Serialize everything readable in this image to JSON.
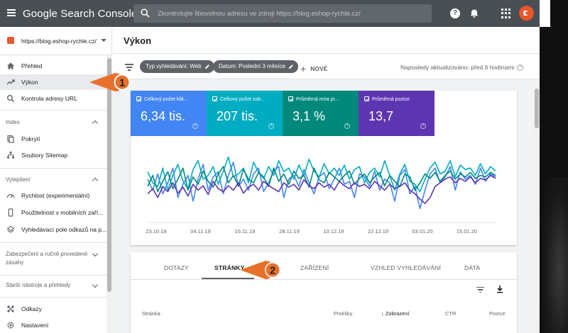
{
  "app": {
    "title": "Google Search Console",
    "search_placeholder": "Zkontrolujte libovolnou adresu ve zdroji https://blog.eshop-rychle.cz/"
  },
  "colors": {
    "topbar": "#4a4f54",
    "clicks": "#4285f4",
    "impressions": "#00acc1",
    "ctr": "#00897b",
    "position": "#5e35b1",
    "callout": "#e8702a"
  },
  "sidebar": {
    "property": "https://blog.eshop-rychle.cz/",
    "items": [
      {
        "label": "Přehled",
        "icon": "home-icon"
      },
      {
        "label": "Výkon",
        "icon": "trending-up-icon"
      },
      {
        "label": "Kontrola adresy URL",
        "icon": "search-icon"
      }
    ],
    "sections": [
      {
        "title": "Index",
        "items": [
          {
            "label": "Pokrytí",
            "icon": "file-copy-icon"
          },
          {
            "label": "Soubory Sitemap",
            "icon": "sitemap-icon"
          }
        ]
      },
      {
        "title": "Vylepšení",
        "items": [
          {
            "label": "Rychlost (experimentální)",
            "icon": "speed-icon"
          },
          {
            "label": "Použitelnost v mobilních zaří...",
            "icon": "phone-icon"
          },
          {
            "label": "Vyhledávací pole odkazů na p...",
            "icon": "layers-icon"
          }
        ]
      },
      {
        "title": "Zabezpečení a ručně provedené zásahy"
      },
      {
        "title": "Starší nástroje a přehledy"
      }
    ],
    "bottom_items": [
      {
        "label": "Odkazy",
        "icon": "links-icon"
      },
      {
        "label": "Nastavení",
        "icon": "settings-icon"
      }
    ]
  },
  "main": {
    "title": "Výkon",
    "filters": [
      {
        "label": "Typ vyhledávání: Web"
      },
      {
        "label": "Datum: Poslední 3 měsíce"
      }
    ],
    "new_label": "NOVÉ",
    "updated": "Naposledy aktualizováno: před 6 hodinami"
  },
  "metrics": [
    {
      "label": "Celkový počet klik...",
      "value": "6,34 tis."
    },
    {
      "label": "Celkový počet zob...",
      "value": "207 tis."
    },
    {
      "label": "Průměrná míra pr...",
      "value": "3,1 %"
    },
    {
      "label": "Průměrná pozice",
      "value": "13,7"
    }
  ],
  "chart_data": {
    "type": "line",
    "x_tick_labels": [
      "23.10.19",
      "04.11.19",
      "16.11.19",
      "28.11.19",
      "10.12.19",
      "22.12.19",
      "03.01.20",
      "15.01.20"
    ],
    "series": [
      {
        "name": "Celkový počet kliknutí",
        "color": "#4285f4",
        "values": [
          0.55,
          0.4,
          0.62,
          0.35,
          0.5,
          0.7,
          0.3,
          0.48,
          0.6,
          0.25,
          0.55,
          0.75,
          0.4,
          0.58,
          0.65,
          0.35,
          0.6,
          0.78,
          0.45,
          0.55,
          0.4,
          0.62,
          0.7,
          0.38,
          0.5,
          0.66,
          0.72,
          0.3,
          0.55,
          0.6,
          0.45,
          0.68,
          0.5,
          0.35,
          0.58,
          0.64,
          0.42,
          0.55,
          0.7,
          0.48,
          0.52,
          0.3,
          0.62,
          0.58,
          0.45,
          0.66,
          0.4,
          0.55,
          0.5,
          0.25,
          0.6,
          0.68,
          0.35,
          0.45,
          0.15,
          0.4,
          0.62,
          0.7,
          0.5,
          0.58,
          0.72,
          0.4,
          0.65,
          0.55,
          0.6,
          0.48,
          0.7,
          0.52,
          0.62,
          0.58
        ]
      },
      {
        "name": "Celkový počet zobrazení",
        "color": "#00acc1",
        "values": [
          0.65,
          0.5,
          0.45,
          0.7,
          0.4,
          0.6,
          0.75,
          0.52,
          0.42,
          0.68,
          0.8,
          0.55,
          0.6,
          0.72,
          0.48,
          0.66,
          0.85,
          0.58,
          0.62,
          0.7,
          0.5,
          0.78,
          0.64,
          0.56,
          0.72,
          0.6,
          0.8,
          0.65,
          0.7,
          0.55,
          0.74,
          0.6,
          0.82,
          0.66,
          0.58,
          0.76,
          0.62,
          0.7,
          0.6,
          0.74,
          0.55,
          0.68,
          0.72,
          0.5,
          0.64,
          0.7,
          0.58,
          0.8,
          0.6,
          0.4,
          0.62,
          0.75,
          0.52,
          0.48,
          0.38,
          0.55,
          0.7,
          0.78,
          0.62,
          0.66,
          0.8,
          0.58,
          0.74,
          0.68,
          0.7,
          0.6,
          0.76,
          0.62,
          0.72,
          0.66
        ]
      },
      {
        "name": "Průměrná míra prokliku",
        "color": "#00897b",
        "values": [
          0.45,
          0.6,
          0.38,
          0.52,
          0.65,
          0.42,
          0.55,
          0.7,
          0.4,
          0.58,
          0.48,
          0.66,
          0.52,
          0.44,
          0.62,
          0.72,
          0.5,
          0.6,
          0.46,
          0.68,
          0.55,
          0.5,
          0.64,
          0.58,
          0.45,
          0.7,
          0.52,
          0.62,
          0.48,
          0.66,
          0.56,
          0.6,
          0.44,
          0.7,
          0.54,
          0.5,
          0.64,
          0.58,
          0.52,
          0.6,
          0.66,
          0.48,
          0.56,
          0.62,
          0.5,
          0.58,
          0.64,
          0.46,
          0.6,
          0.52,
          0.45,
          0.62,
          0.58,
          0.4,
          0.5,
          0.62,
          0.56,
          0.64,
          0.52,
          0.6,
          0.66,
          0.55,
          0.62,
          0.58,
          0.64,
          0.56,
          0.6,
          0.58,
          0.64,
          0.6
        ]
      },
      {
        "name": "Průměrná pozice",
        "color": "#5e35b1",
        "values": [
          0.35,
          0.42,
          0.3,
          0.45,
          0.38,
          0.5,
          0.36,
          0.44,
          0.32,
          0.48,
          0.4,
          0.46,
          0.34,
          0.52,
          0.42,
          0.38,
          0.46,
          0.4,
          0.5,
          0.36,
          0.44,
          0.48,
          0.4,
          0.52,
          0.46,
          0.42,
          0.38,
          0.5,
          0.44,
          0.48,
          0.4,
          0.54,
          0.46,
          0.42,
          0.5,
          0.44,
          0.48,
          0.4,
          0.52,
          0.46,
          0.42,
          0.5,
          0.45,
          0.48,
          0.42,
          0.52,
          0.46,
          0.4,
          0.48,
          0.42,
          0.45,
          0.5,
          0.4,
          0.35,
          0.28,
          0.22,
          0.3,
          0.45,
          0.5,
          0.55,
          0.58,
          0.5,
          0.56,
          0.52,
          0.58,
          0.5,
          0.56,
          0.54,
          0.6,
          0.56
        ]
      }
    ],
    "grid": false,
    "legend": "none"
  },
  "table": {
    "tabs": [
      "DOTAZY",
      "STRÁNKY",
      "ZAŘÍZENÍ",
      "VZHLED VYHLEDÁVÁNÍ",
      "DATA"
    ],
    "active_tab": "STRÁNKY",
    "columns": [
      "Stránka",
      "Prokliky",
      "Zobrazení",
      "CTR",
      "Pozice"
    ],
    "sorted_column": "Zobrazení"
  },
  "callouts": [
    "1",
    "2"
  ]
}
